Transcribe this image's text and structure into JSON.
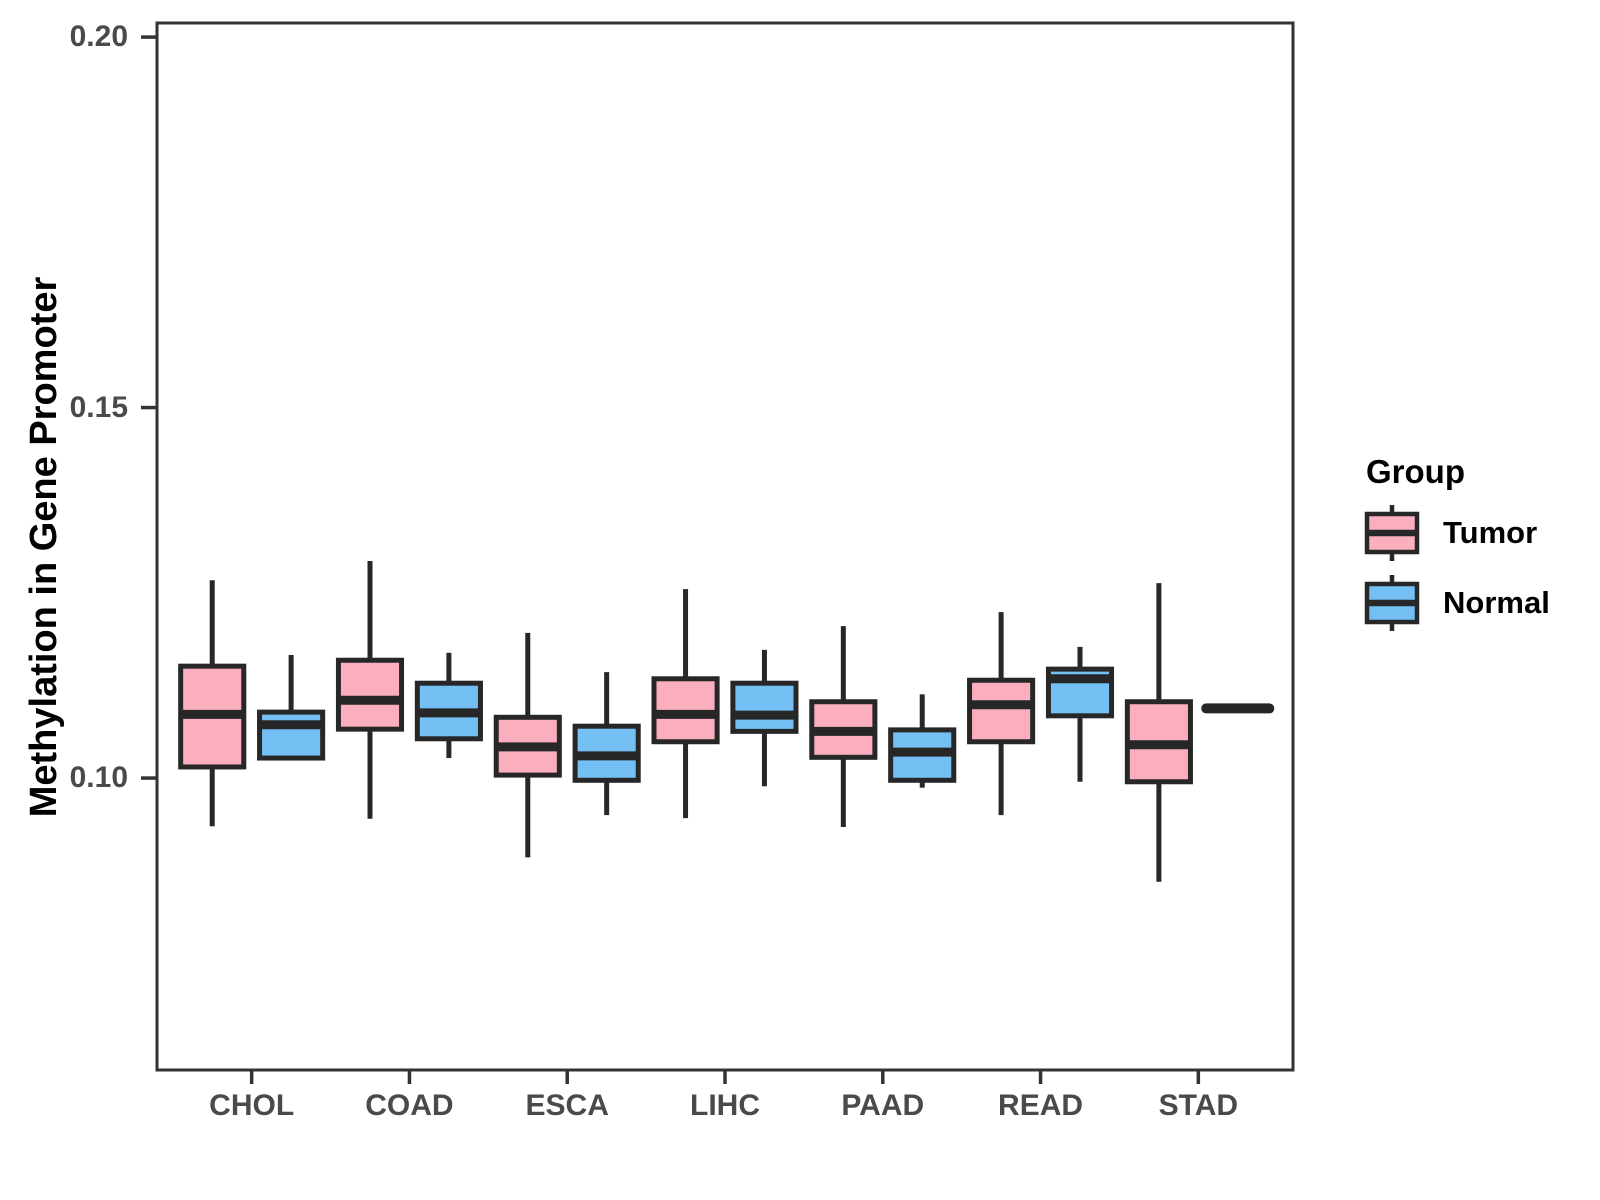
{
  "chart_data": {
    "type": "boxplot",
    "title": "",
    "xlabel": "",
    "ylabel": "Methylation in Gene Promoter",
    "categories": [
      "CHOL",
      "COAD",
      "ESCA",
      "LIHC",
      "PAAD",
      "READ",
      "STAD"
    ],
    "yticks": [
      {
        "label": "0.20",
        "value": 0.2
      },
      {
        "label": "0.15",
        "value": 0.15
      },
      {
        "label": "0.10",
        "value": 0.1
      }
    ],
    "ylim": [
      0.0606,
      0.2019
    ],
    "grid": false,
    "legend": {
      "title": "Group",
      "position": "right"
    },
    "colors": {
      "tumor_fill": "#FBAFBE",
      "normal_fill": "#74C0F4",
      "box_stroke": "#272727",
      "panel_border": "#333333",
      "tick_color": "#333333",
      "axis_text": "#4a4a4a"
    },
    "series": [
      {
        "name": "Tumor",
        "color": "#FBAFBE",
        "boxes": [
          {
            "low": 0.0935,
            "q1": 0.1015,
            "median": 0.1086,
            "q3": 0.1151,
            "high": 0.1267
          },
          {
            "low": 0.0945,
            "q1": 0.1066,
            "median": 0.1105,
            "q3": 0.1159,
            "high": 0.1293
          },
          {
            "low": 0.0893,
            "q1": 0.1004,
            "median": 0.1042,
            "q3": 0.1082,
            "high": 0.1196
          },
          {
            "low": 0.0946,
            "q1": 0.1049,
            "median": 0.1086,
            "q3": 0.1134,
            "high": 0.1255
          },
          {
            "low": 0.0934,
            "q1": 0.1028,
            "median": 0.1063,
            "q3": 0.1103,
            "high": 0.1205
          },
          {
            "low": 0.095,
            "q1": 0.1049,
            "median": 0.1099,
            "q3": 0.1132,
            "high": 0.1224
          },
          {
            "low": 0.086,
            "q1": 0.0995,
            "median": 0.1045,
            "q3": 0.1103,
            "high": 0.1263
          }
        ]
      },
      {
        "name": "Normal",
        "color": "#74C0F4",
        "boxes": [
          {
            "low": 0.1027,
            "q1": 0.1027,
            "median": 0.1072,
            "q3": 0.1089,
            "high": 0.1166
          },
          {
            "low": 0.1027,
            "q1": 0.1053,
            "median": 0.1088,
            "q3": 0.1128,
            "high": 0.1169
          },
          {
            "low": 0.095,
            "q1": 0.0997,
            "median": 0.103,
            "q3": 0.107,
            "high": 0.1143
          },
          {
            "low": 0.0989,
            "q1": 0.1063,
            "median": 0.1085,
            "q3": 0.1128,
            "high": 0.1173
          },
          {
            "low": 0.0987,
            "q1": 0.0997,
            "median": 0.1035,
            "q3": 0.1065,
            "high": 0.1113
          },
          {
            "low": 0.0995,
            "q1": 0.1084,
            "median": 0.1134,
            "q3": 0.1147,
            "high": 0.1177
          },
          {
            "low": 0.1094,
            "q1": 0.1094,
            "median": 0.1094,
            "q3": 0.1094,
            "high": 0.1094
          }
        ]
      }
    ]
  }
}
